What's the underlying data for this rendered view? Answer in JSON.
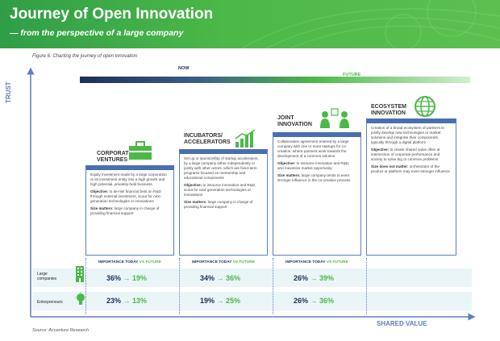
{
  "header": {
    "title": "Journey of Open Innovation",
    "subtitle": "— from the perspective of a large company"
  },
  "figure_caption": "Figure 6: Charting the journey of open innovation",
  "timeline": {
    "now": "NOW",
    "future": "FUTURE"
  },
  "axes": {
    "y": "TRUST",
    "x": "SHARED VALUE"
  },
  "columns": [
    {
      "title": "CORPORATE\nVENTURES",
      "icon": "briefcase-icon",
      "description": "Equity investment made by a large corporation or its investment entity into a high growth and high potential, privately-held business.",
      "objective_label": "Objective:",
      "objective": "to de-risk financial bets on R&D through external investment, scout for next generation technologies or innovations",
      "size_label": "Size matters:",
      "size": "large company in charge of providing financial support"
    },
    {
      "title": "INCUBATORS/\nACCELERATORS",
      "icon": "growth-chart-icon",
      "description": "Set up or sponsorship of startup accelerators, by a large company either independently or jointly with other actors, which are fixed-term programs focused on mentorship and educational components",
      "objective_label": "Objective:",
      "objective": "to insource innovation and R&D, scout for next generation technologies or innovations",
      "size_label": "Size matters:",
      "size": "large company in charge of providing financial support"
    },
    {
      "title": "JOINT\nINNOVATION",
      "icon": "collaborating-people-icon",
      "description": "Collaboration agreement entered by a large company with one or more startups for co-creation, where partners work towards the development of a common solution",
      "objective_label": "Objective:",
      "objective": "to insource innovation and R&D, and maximize market opportunity",
      "size_label": "Size matters:",
      "size": "large company tends to exert stronger influence in the co-creation process"
    },
    {
      "title": "ECOSYSTEM\nINNOVATION",
      "icon": "globe-icon",
      "description": "Creation of a broad ecosystem of partners to jointly develop new technologies or market solutions and integrate their components, typically through a digital platform",
      "objective_label": "Objective:",
      "objective": "to create shared value often at intersection of corporate performance and society to solve big or common problems",
      "size_label": "Size does not matter:",
      "size": "orchestrator of the product or platform may exert stronger influence"
    }
  ],
  "importance_header": {
    "today": "IMPORTANCE TODAY",
    "vs": "VS",
    "future": "FUTURE"
  },
  "rows": [
    {
      "label": "Large\ncompanies",
      "icon": "building-icon",
      "values": [
        {
          "today": "36%",
          "future": "19%"
        },
        {
          "today": "34%",
          "future": "36%"
        },
        {
          "today": "26%",
          "future": "39%"
        }
      ]
    },
    {
      "label": "Entrepreneurs",
      "icon": "lightbulb-icon",
      "values": [
        {
          "today": "23%",
          "future": "13%"
        },
        {
          "today": "19%",
          "future": "25%"
        },
        {
          "today": "26%",
          "future": "36%"
        }
      ]
    }
  ],
  "arrow_glyph": "→",
  "source": "Source: Accenture Research",
  "colors": {
    "green": "#4cb848",
    "navy": "#1d2e5a",
    "blue": "#5b7fc0",
    "band": "#eaf5f7"
  }
}
